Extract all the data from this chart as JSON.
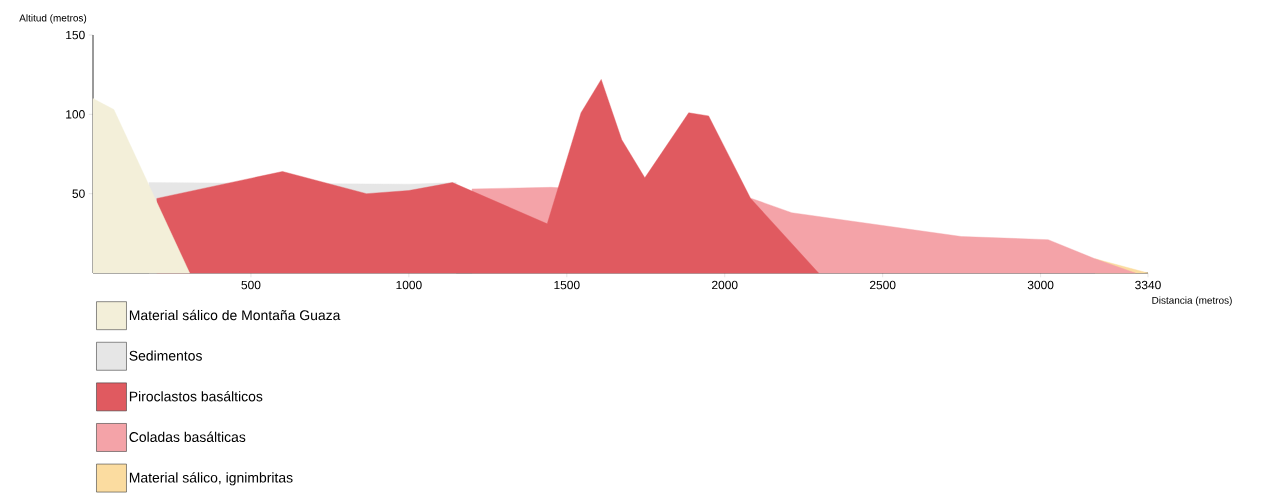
{
  "chart_data": {
    "type": "area",
    "xlabel": "Distancia (metros)",
    "ylabel": "Altitud (metros)",
    "xlim": [
      0,
      3340
    ],
    "ylim": [
      0,
      150
    ],
    "xticks": [
      500,
      1000,
      1500,
      2000,
      2500,
      3000,
      3340
    ],
    "yticks": [
      50,
      100,
      150
    ],
    "legend": "bottom left",
    "series": [
      {
        "name": "Material sálico de Montaña Guaza",
        "color": "#f3efd9",
        "x": [
          0,
          66,
          306
        ],
        "values": [
          110,
          103,
          0
        ]
      },
      {
        "name": "Sedimentos",
        "color": "#e6e6e6",
        "x": [
          177,
          1000,
          1150
        ],
        "values": [
          57,
          56,
          57
        ]
      },
      {
        "name": "Piroclastos basálticos",
        "color": "#e05a60",
        "x": [
          202,
          600,
          866,
          1000,
          1138,
          1438,
          1545,
          1609,
          1674,
          1747,
          1886,
          1949,
          2082,
          2297
        ],
        "values": [
          47,
          64,
          50,
          52,
          57,
          31,
          101,
          122,
          84,
          60,
          101,
          99,
          47,
          0
        ]
      },
      {
        "name": "Coladas basálticas",
        "color": "#f4a3a8",
        "x": [
          1200,
          1450,
          2085,
          2212,
          2749,
          3024,
          3172,
          3300
        ],
        "values": [
          53,
          54,
          47,
          38,
          23,
          21,
          9,
          0
        ]
      },
      {
        "name": "Material sálico, ignimbritas",
        "color": "#fbdca0",
        "x": [
          3172,
          3340
        ],
        "values": [
          9,
          0
        ]
      }
    ]
  }
}
